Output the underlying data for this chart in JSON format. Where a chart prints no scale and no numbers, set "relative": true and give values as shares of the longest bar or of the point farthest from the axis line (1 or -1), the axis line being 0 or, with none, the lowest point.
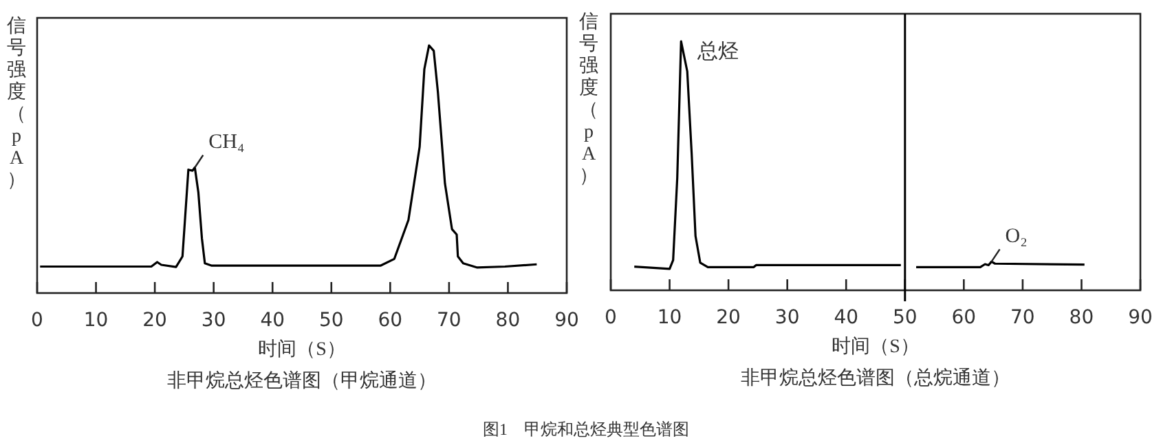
{
  "chart_data": [
    {
      "type": "line",
      "relative": true,
      "title": "非甲烷总烃色谱图（甲烷通道）",
      "xlabel": "时间（S）",
      "ylabel": "信号强度（pA）",
      "xlim": [
        0,
        90
      ],
      "xticks": [
        0,
        10,
        20,
        30,
        40,
        50,
        60,
        70,
        80,
        90
      ],
      "x": [
        0.5,
        19.4,
        20.4,
        21.1,
        23.6,
        24.7,
        25.7,
        26.4,
        26.8,
        27.4,
        28.0,
        28.5,
        29.6,
        58.4,
        60.7,
        63.1,
        65.0,
        65.8,
        66.6,
        67.4,
        68.1,
        69.3,
        70.5,
        71.3,
        71.5,
        72.4,
        74.8,
        79.5,
        84.9
      ],
      "series": [
        {
          "color": "#000000",
          "values": [
            0.107,
            0.107,
            0.125,
            0.114,
            0.105,
            0.148,
            0.498,
            0.494,
            0.507,
            0.406,
            0.221,
            0.12,
            0.111,
            0.111,
            0.138,
            0.295,
            0.59,
            0.904,
            1.0,
            0.978,
            0.812,
            0.443,
            0.258,
            0.236,
            0.148,
            0.12,
            0.103,
            0.107,
            0.116
          ]
        }
      ],
      "annotations": [
        {
          "text": "CH₄",
          "x": 26.8,
          "y": 0.507
        },
        "图1　甲烷和总烃典型色谱图"
      ]
    },
    {
      "type": "line",
      "relative": true,
      "title": "非甲烷总烃色谱图（总烷通道）",
      "xlabel": "时间（S）",
      "ylabel": "信号强度（pA）",
      "xlim": [
        0,
        90
      ],
      "xticks": [
        0,
        10,
        20,
        30,
        40,
        50,
        60,
        70,
        80,
        90
      ],
      "series": [
        {
          "color": "#000000",
          "x": [
            4.0,
            10.0,
            10.6,
            11.3,
            11.95,
            13.0,
            13.75,
            14.4,
            15.2,
            16.5,
            24.3,
            24.7,
            49.3
          ],
          "values": [
            0.095,
            0.086,
            0.121,
            0.451,
            1.0,
            0.879,
            0.549,
            0.218,
            0.111,
            0.093,
            0.093,
            0.101,
            0.101
          ]
        },
        {
          "color": "#000000",
          "x": [
            51.9,
            62.8,
            63.6,
            64.2,
            64.7,
            65.3,
            80.5
          ],
          "values": [
            0.093,
            0.093,
            0.105,
            0.101,
            0.115,
            0.107,
            0.103
          ]
        }
      ],
      "ref_lines": [
        {
          "axis": "x",
          "value": 50,
          "color": "#000000"
        }
      ],
      "annotations": [
        {
          "text": "总烃",
          "x": 11.95,
          "y": 1.0
        },
        {
          "text": "O₂",
          "x": 64.7,
          "y": 0.115
        }
      ]
    }
  ]
}
